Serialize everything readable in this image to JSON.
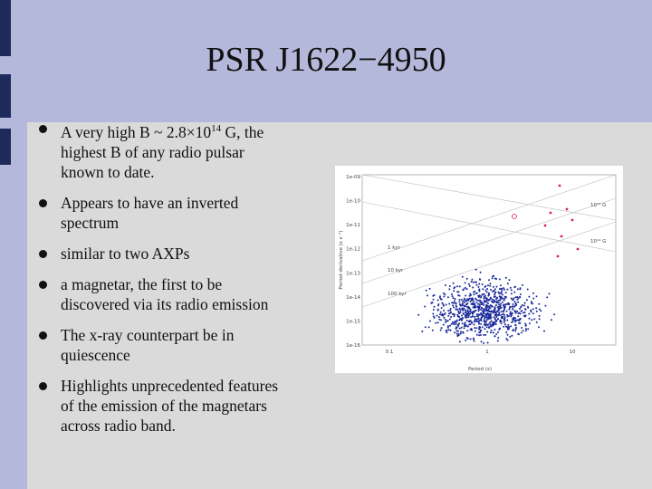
{
  "title": "PSR J1622−4950",
  "bullets": [
    {
      "lines": [
        {
          "text": "A very high B ~ 2.8×10",
          "superscript": "14",
          "after": " G, the"
        },
        "highest B of any radio pulsar",
        "known to date."
      ]
    },
    {
      "lines": [
        "Appears to have  an inverted",
        "spectrum"
      ]
    },
    {
      "lines": [
        "similar to two AXPs"
      ]
    },
    {
      "lines": [
        "a magnetar, the first to be",
        "discovered via its radio emission"
      ]
    },
    {
      "lines": [
        "The x-ray counterpart be in",
        "quiescence"
      ]
    },
    {
      "lines": [
        "Highlights unprecedented features",
        "of the emission of  the magnetars",
        "across  radio band."
      ]
    }
  ],
  "figure": {
    "x_axis_label": "Period (s)",
    "y_axis_label": "Period derivative (s s⁻¹)",
    "yticks": [
      "1e-09",
      "1e-10",
      "1e-11",
      "1e-12",
      "1e-13",
      "1e-14",
      "1e-15",
      "1e-16"
    ],
    "xticks": [
      "0.1",
      "1",
      "10"
    ],
    "age_labels": [
      "1 kyr",
      "10 kyr",
      "100 kyr"
    ],
    "field_labels": [
      "10¹⁵ G",
      "10¹⁴ G"
    ]
  }
}
